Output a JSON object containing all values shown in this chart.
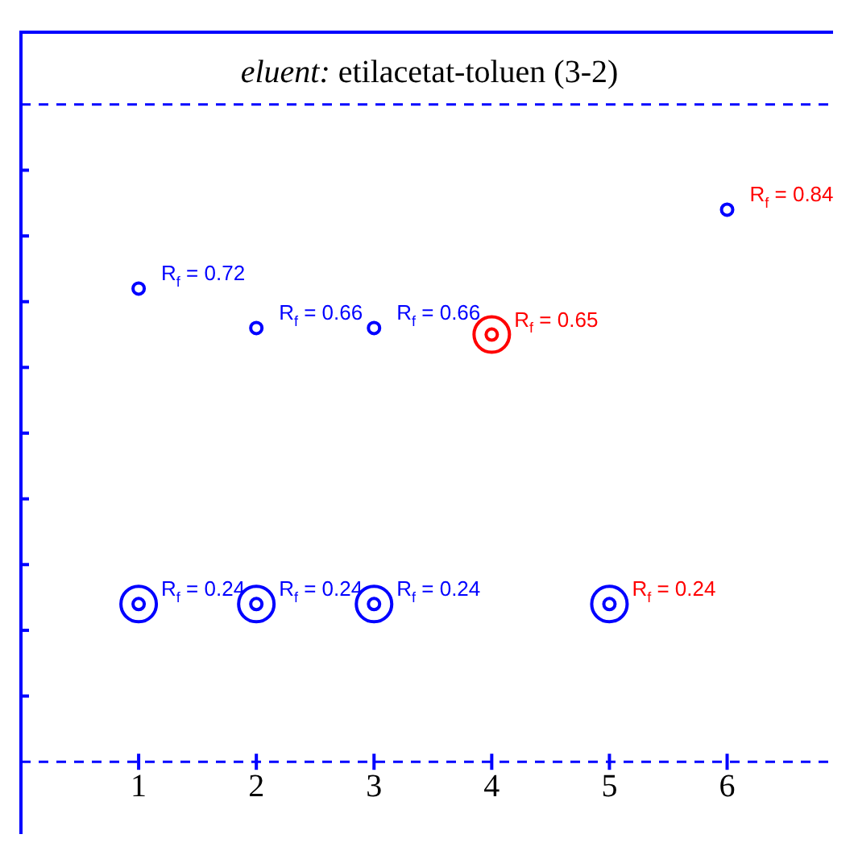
{
  "chart_data": {
    "type": "scatter",
    "title": "eluent: etilacetat-toluen (3-2)",
    "xlim": [
      0,
      6.9
    ],
    "xticks": [
      1,
      2,
      3,
      4,
      5,
      6
    ],
    "ylim": [
      -0.11,
      1.11
    ],
    "yticks": [
      {
        "value": 0.1,
        "label": null
      },
      {
        "value": 0.2,
        "label": null
      },
      {
        "value": 0.3,
        "label": null
      },
      {
        "value": 0.4,
        "label": null
      },
      {
        "value": 0.5,
        "label": null
      },
      {
        "value": 0.6,
        "label": null
      },
      {
        "value": 0.7,
        "label": null
      },
      {
        "value": 0.8,
        "label": null
      },
      {
        "value": 0.9,
        "label": null
      }
    ],
    "tick_labels": "x",
    "marker": "circle",
    "grid": false,
    "legend": false,
    "ref_lines": [
      {
        "axis": "y",
        "value": 0,
        "color": "#0000ff",
        "line_style": "dashed"
      },
      {
        "axis": "y",
        "value": 1,
        "color": "#0000ff",
        "line_style": "dashed"
      }
    ],
    "series": [
      {
        "color": "#0000ff",
        "x": [
          1,
          2,
          3,
          1,
          2,
          3
        ],
        "values": [
          0.72,
          0.66,
          0.66,
          0.24,
          0.24,
          0.24
        ],
        "value_labels": [
          "R$_{f}$ = 0.72",
          "R$_{f}$ = 0.66",
          "R$_{f}$ = 0.66",
          "R$_{f}$ = 0.24",
          "R$_{f}$ = 0.24",
          "R$_{f}$ = 0.24"
        ]
      },
      {
        "color": "#ff0000",
        "colors": [
          "#ff0000",
          "#0000ff",
          "#0000ff"
        ],
        "x": [
          4,
          5,
          6
        ],
        "values": [
          0.65,
          0.24,
          0.84
        ],
        "value_labels": [
          "R$_{f}$ = 0.65",
          "R$_{f}$ = 0.24",
          "R$_{f}$ = 0.84"
        ]
      },
      {
        "marker": "circle",
        "color": "#0000ff",
        "colors": [
          "#0000ff",
          "#0000ff",
          "#0000ff",
          "#ff0000",
          "#0000ff"
        ],
        "x": [
          1,
          2,
          3,
          4,
          5
        ],
        "values": [
          0.24,
          0.24,
          0.24,
          0.65,
          0.24
        ]
      }
    ]
  }
}
